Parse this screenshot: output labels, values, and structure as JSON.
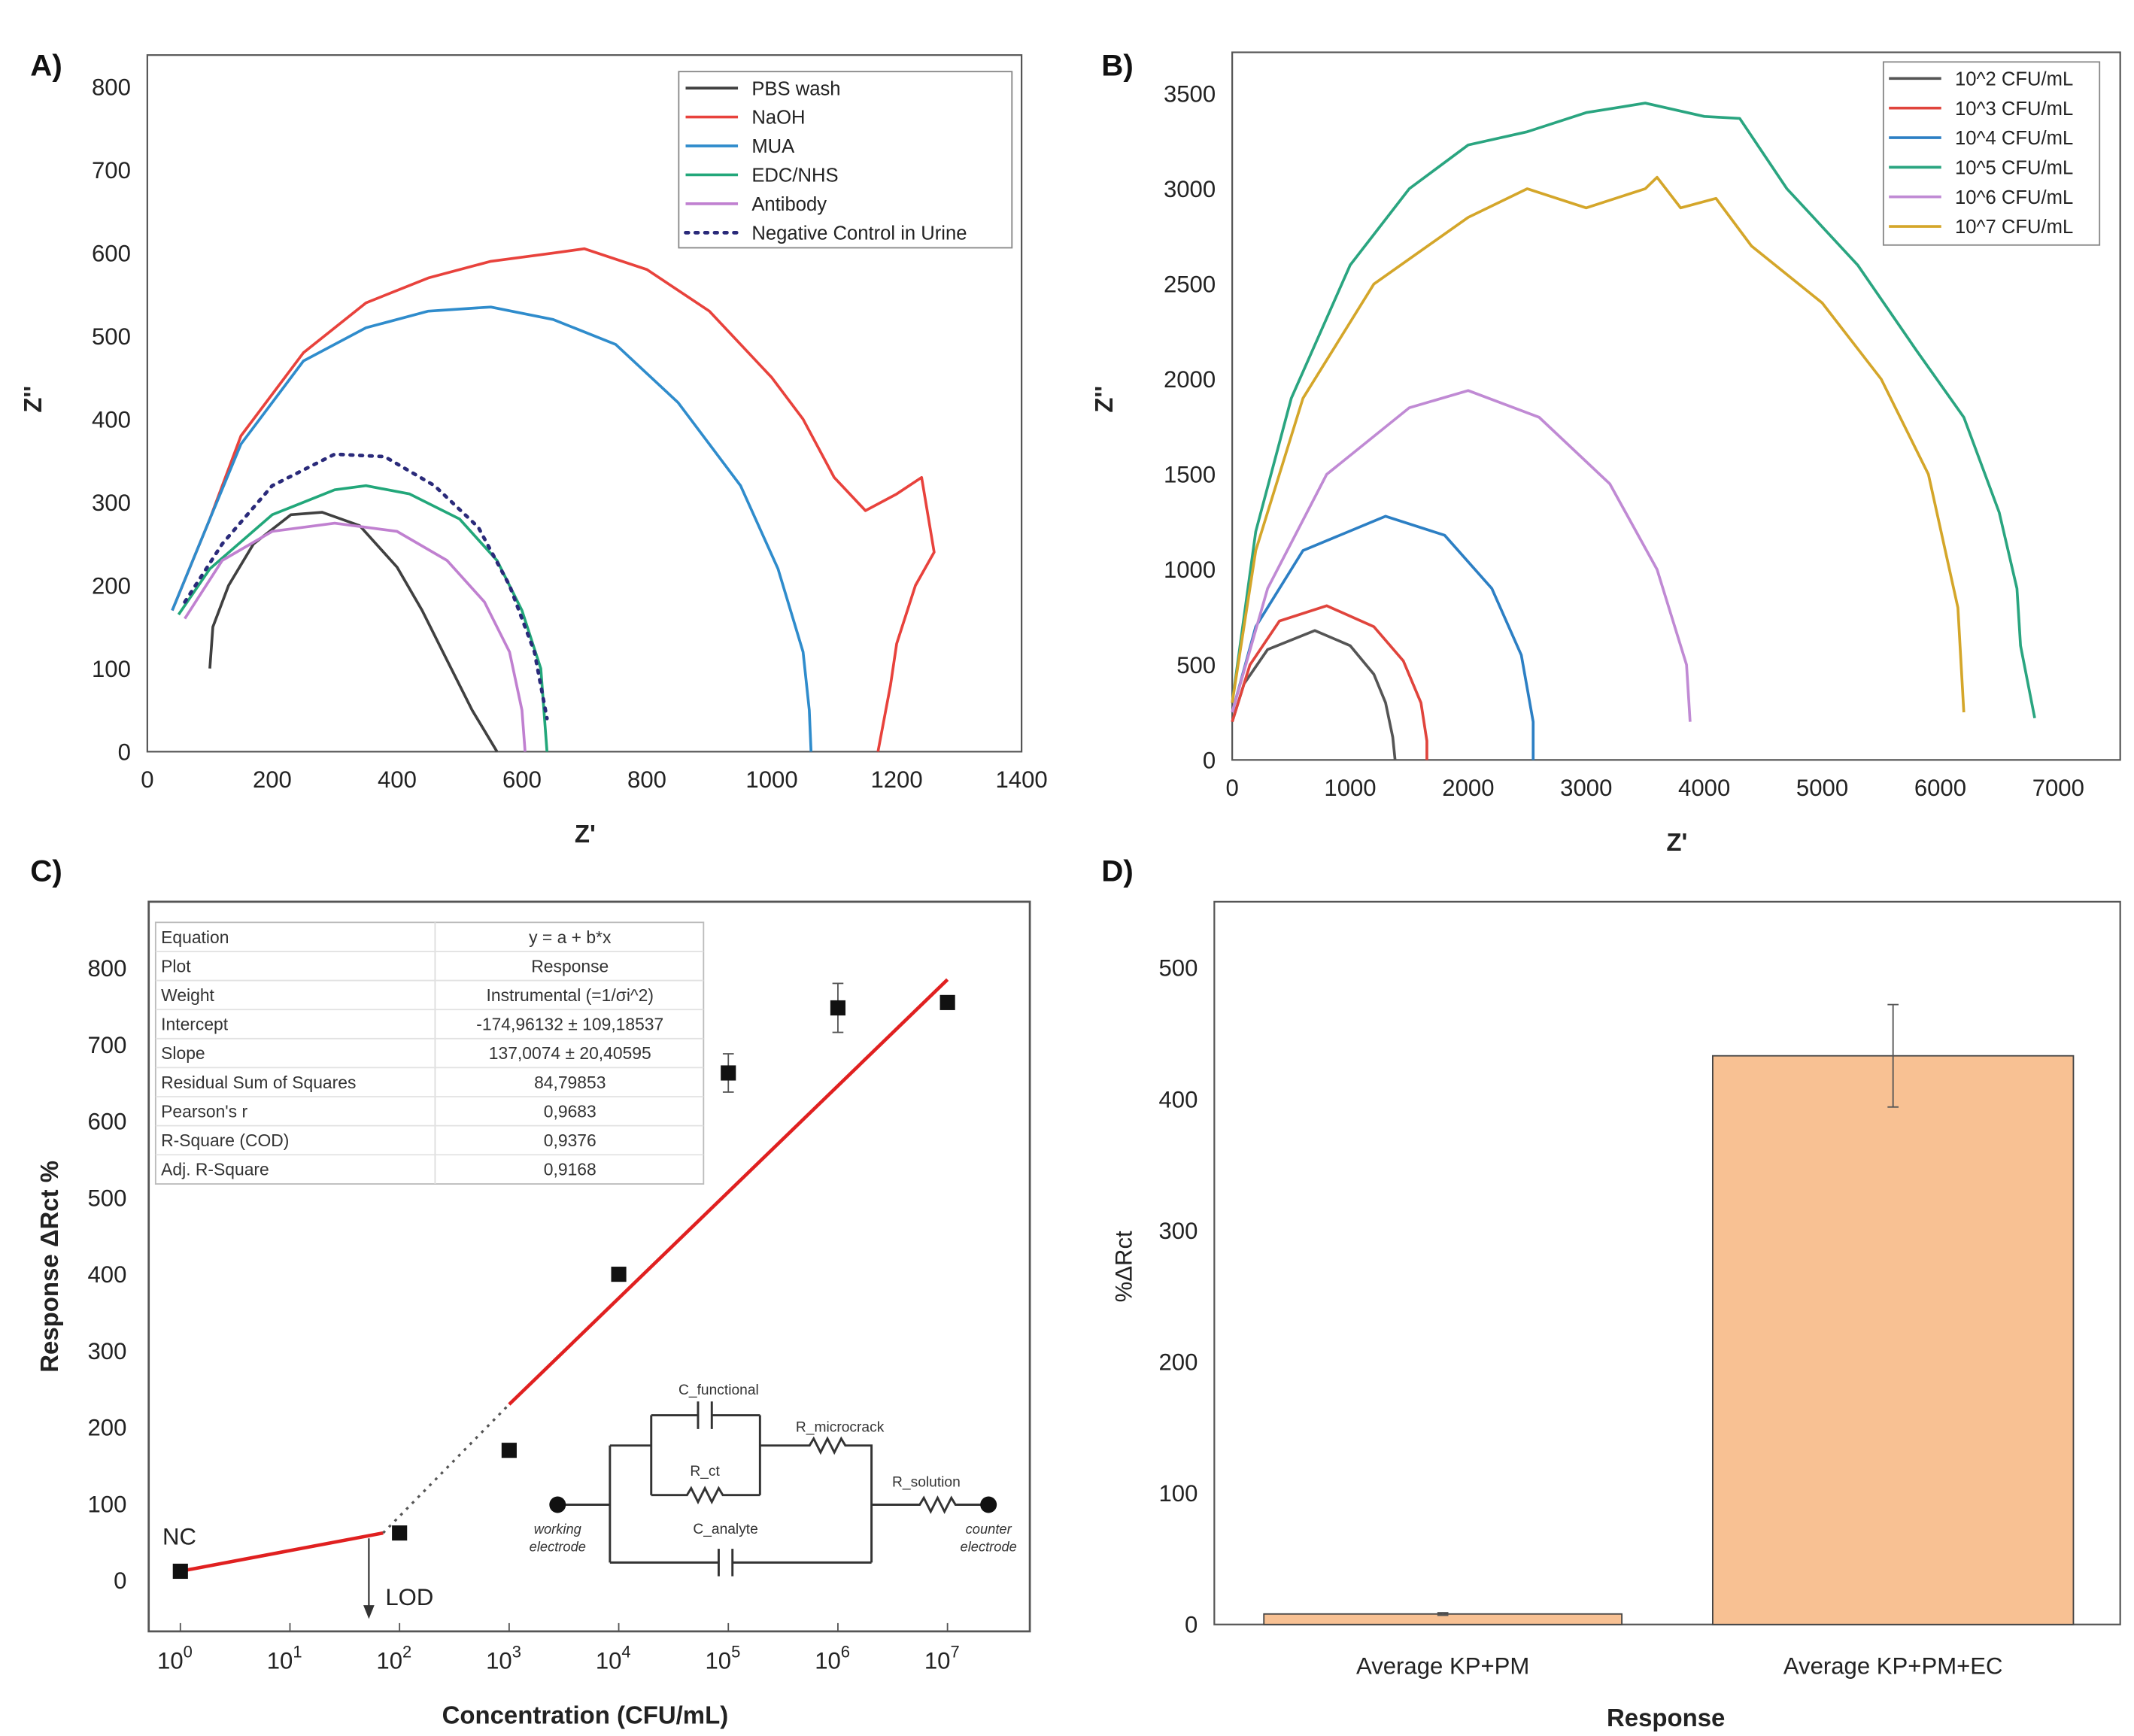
{
  "chart_data": [
    {
      "panel_label": "A)",
      "type": "line",
      "xlabel": "Z'",
      "ylabel": "Z''",
      "xlim": [
        0,
        1400
      ],
      "ylim": [
        0,
        800
      ],
      "x_ticks": [
        0,
        200,
        400,
        600,
        800,
        1000,
        1200,
        1400
      ],
      "y_ticks": [
        0,
        100,
        200,
        300,
        400,
        500,
        600,
        700,
        800
      ],
      "grid": false,
      "legend_position": "top-right",
      "series": [
        {
          "name": "PBS wash",
          "color": "#404040",
          "style": "solid",
          "points": [
            [
              100,
              100
            ],
            [
              105,
              150
            ],
            [
              130,
              200
            ],
            [
              170,
              250
            ],
            [
              230,
              285
            ],
            [
              280,
              288
            ],
            [
              340,
              272
            ],
            [
              400,
              222
            ],
            [
              440,
              170
            ],
            [
              480,
              110
            ],
            [
              520,
              50
            ],
            [
              560,
              0
            ]
          ]
        },
        {
          "name": "NaOH",
          "color": "#e8423c",
          "style": "solid",
          "points": [
            [
              40,
              170
            ],
            [
              100,
              280
            ],
            [
              150,
              380
            ],
            [
              250,
              480
            ],
            [
              350,
              540
            ],
            [
              450,
              570
            ],
            [
              550,
              590
            ],
            [
              650,
              600
            ],
            [
              700,
              605
            ],
            [
              800,
              580
            ],
            [
              900,
              530
            ],
            [
              1000,
              450
            ],
            [
              1050,
              400
            ],
            [
              1100,
              330
            ],
            [
              1150,
              290
            ],
            [
              1200,
              310
            ],
            [
              1240,
              330
            ],
            [
              1260,
              240
            ],
            [
              1230,
              200
            ],
            [
              1200,
              130
            ],
            [
              1190,
              80
            ],
            [
              1170,
              0
            ]
          ]
        },
        {
          "name": "MUA",
          "color": "#2f8ccc",
          "style": "solid",
          "points": [
            [
              40,
              170
            ],
            [
              100,
              280
            ],
            [
              150,
              370
            ],
            [
              250,
              470
            ],
            [
              350,
              510
            ],
            [
              450,
              530
            ],
            [
              550,
              535
            ],
            [
              650,
              520
            ],
            [
              750,
              490
            ],
            [
              850,
              420
            ],
            [
              950,
              320
            ],
            [
              1010,
              220
            ],
            [
              1050,
              120
            ],
            [
              1060,
              50
            ],
            [
              1063,
              0
            ]
          ]
        },
        {
          "name": "EDC/NHS",
          "color": "#22a77a",
          "style": "solid",
          "points": [
            [
              50,
              165
            ],
            [
              100,
              220
            ],
            [
              200,
              285
            ],
            [
              300,
              315
            ],
            [
              350,
              320
            ],
            [
              420,
              310
            ],
            [
              500,
              280
            ],
            [
              560,
              230
            ],
            [
              600,
              170
            ],
            [
              630,
              100
            ],
            [
              640,
              0
            ]
          ]
        },
        {
          "name": "Antibody",
          "color": "#c080d0",
          "style": "solid",
          "points": [
            [
              60,
              160
            ],
            [
              120,
              230
            ],
            [
              200,
              265
            ],
            [
              300,
              275
            ],
            [
              400,
              265
            ],
            [
              480,
              230
            ],
            [
              540,
              180
            ],
            [
              580,
              120
            ],
            [
              600,
              50
            ],
            [
              605,
              0
            ]
          ]
        },
        {
          "name": "Negative Control in Urine",
          "color": "#2a2a7a",
          "style": "dotted",
          "points": [
            [
              60,
              180
            ],
            [
              120,
              250
            ],
            [
              200,
              320
            ],
            [
              300,
              358
            ],
            [
              380,
              355
            ],
            [
              460,
              320
            ],
            [
              530,
              270
            ],
            [
              580,
              200
            ],
            [
              620,
              120
            ],
            [
              640,
              40
            ]
          ]
        }
      ]
    },
    {
      "panel_label": "B)",
      "type": "line",
      "xlabel": "Z'",
      "ylabel": "Z''",
      "xlim": [
        0,
        7000
      ],
      "ylim": [
        0,
        3500
      ],
      "x_ticks": [
        0,
        1000,
        2000,
        3000,
        4000,
        5000,
        6000,
        7000
      ],
      "y_ticks": [
        0,
        500,
        1000,
        1500,
        2000,
        2500,
        3000,
        3500
      ],
      "grid": false,
      "legend_position": "top-right",
      "series": [
        {
          "name": "10^2 CFU/mL",
          "color": "#555555",
          "points": [
            [
              0,
              200
            ],
            [
              100,
              400
            ],
            [
              300,
              580
            ],
            [
              700,
              680
            ],
            [
              1000,
              600
            ],
            [
              1200,
              450
            ],
            [
              1300,
              300
            ],
            [
              1360,
              120
            ],
            [
              1380,
              0
            ]
          ]
        },
        {
          "name": "10^3 CFU/mL",
          "color": "#e0443c",
          "points": [
            [
              0,
              200
            ],
            [
              150,
              500
            ],
            [
              400,
              730
            ],
            [
              800,
              810
            ],
            [
              1200,
              700
            ],
            [
              1450,
              520
            ],
            [
              1600,
              300
            ],
            [
              1650,
              100
            ],
            [
              1650,
              0
            ]
          ]
        },
        {
          "name": "10^4 CFU/mL",
          "color": "#2c7fc4",
          "points": [
            [
              0,
              250
            ],
            [
              200,
              700
            ],
            [
              600,
              1100
            ],
            [
              1300,
              1280
            ],
            [
              1800,
              1180
            ],
            [
              2200,
              900
            ],
            [
              2450,
              550
            ],
            [
              2550,
              200
            ],
            [
              2550,
              0
            ]
          ]
        },
        {
          "name": "10^5 CFU/mL",
          "color": "#2aa580",
          "points": [
            [
              0,
              300
            ],
            [
              200,
              1200
            ],
            [
              500,
              1900
            ],
            [
              1000,
              2600
            ],
            [
              1500,
              3000
            ],
            [
              2000,
              3230
            ],
            [
              2500,
              3300
            ],
            [
              3000,
              3400
            ],
            [
              3500,
              3450
            ],
            [
              4000,
              3380
            ],
            [
              4300,
              3370
            ],
            [
              4700,
              3000
            ],
            [
              5300,
              2600
            ],
            [
              5800,
              2150
            ],
            [
              6200,
              1800
            ],
            [
              6500,
              1300
            ],
            [
              6650,
              900
            ],
            [
              6680,
              600
            ],
            [
              6800,
              220
            ]
          ]
        },
        {
          "name": "10^6 CFU/mL",
          "color": "#c08ad4",
          "points": [
            [
              0,
              250
            ],
            [
              300,
              900
            ],
            [
              800,
              1500
            ],
            [
              1500,
              1850
            ],
            [
              2000,
              1940
            ],
            [
              2600,
              1800
            ],
            [
              3200,
              1450
            ],
            [
              3600,
              1000
            ],
            [
              3850,
              500
            ],
            [
              3880,
              200
            ]
          ]
        },
        {
          "name": "10^7 CFU/mL",
          "color": "#d4a62a",
          "points": [
            [
              0,
              300
            ],
            [
              200,
              1100
            ],
            [
              600,
              1900
            ],
            [
              1200,
              2500
            ],
            [
              2000,
              2850
            ],
            [
              2500,
              3000
            ],
            [
              3000,
              2900
            ],
            [
              3500,
              3000
            ],
            [
              3600,
              3060
            ],
            [
              3800,
              2900
            ],
            [
              4100,
              2950
            ],
            [
              4400,
              2700
            ],
            [
              5000,
              2400
            ],
            [
              5500,
              2000
            ],
            [
              5900,
              1500
            ],
            [
              6150,
              800
            ],
            [
              6200,
              250
            ]
          ]
        }
      ]
    },
    {
      "panel_label": "C)",
      "type": "scatter",
      "xlabel": "Concentration (CFU/mL)",
      "ylabel": "Response ΔRct %",
      "x_scale": "log",
      "xlim_exponent": [
        0,
        7
      ],
      "ylim": [
        0,
        800
      ],
      "x_tick_exponents": [
        0,
        1,
        2,
        3,
        4,
        5,
        6,
        7
      ],
      "y_ticks": [
        0,
        100,
        200,
        300,
        400,
        500,
        600,
        700,
        800
      ],
      "points": [
        {
          "x_exp": 0,
          "y": 12,
          "err": 0
        },
        {
          "x_exp": 2,
          "y": 62,
          "err": 0
        },
        {
          "x_exp": 3,
          "y": 170,
          "err": 8
        },
        {
          "x_exp": 4,
          "y": 400,
          "err": 0
        },
        {
          "x_exp": 5,
          "y": 663,
          "err": 25
        },
        {
          "x_exp": 6,
          "y": 748,
          "err": 32
        },
        {
          "x_exp": 7,
          "y": 755,
          "err": 0
        }
      ],
      "fit_line": {
        "color": "#e02020",
        "from": [
          3,
          230
        ],
        "to": [
          7,
          785
        ]
      },
      "low_line": {
        "color": "#e02020",
        "from": [
          0,
          12
        ],
        "to": [
          1.85,
          62
        ]
      },
      "dotted_extension": {
        "from": [
          1.85,
          62
        ],
        "to": [
          3,
          230
        ]
      },
      "annotations": {
        "nc": "NC",
        "lod": "LOD",
        "lod_x_exp": 1.72
      },
      "fit_table": [
        [
          "Equation",
          "y = a + b*x"
        ],
        [
          "Plot",
          "Response"
        ],
        [
          "Weight",
          "Instrumental (=1/σi^2)"
        ],
        [
          "Intercept",
          "-174,96132 ± 109,18537"
        ],
        [
          "Slope",
          "137,0074 ± 20,40595"
        ],
        [
          "Residual Sum of Squares",
          "84,79853"
        ],
        [
          "Pearson's r",
          "0,9683"
        ],
        [
          "R-Square (COD)",
          "0,9376"
        ],
        [
          "Adj. R-Square",
          "0,9168"
        ]
      ],
      "circuit": {
        "c_functional": "C_functional",
        "r_microcrack": "R_microcrack",
        "r_ct": "R_ct",
        "r_solution": "R_solution",
        "c_analyte": "C_analyte",
        "working_1": "working",
        "working_2": "electrode",
        "counter_1": "counter",
        "counter_2": "electrode"
      }
    },
    {
      "panel_label": "D)",
      "type": "bar",
      "xlabel": "Response",
      "ylabel": "%ΔRct",
      "ylim": [
        0,
        550
      ],
      "y_ticks": [
        0,
        100,
        200,
        300,
        400,
        500
      ],
      "categories": [
        "Average KP+PM",
        "Average KP+PM+EC"
      ],
      "values": [
        8,
        433
      ],
      "errors": [
        1,
        39
      ],
      "bar_color": "#f8c193"
    }
  ]
}
